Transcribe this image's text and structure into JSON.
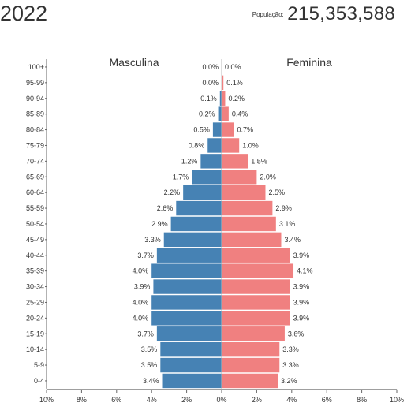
{
  "header": {
    "year": "2022",
    "population_label": "População:",
    "population_value": "215,353,588"
  },
  "colors": {
    "male": "#4682b4",
    "female": "#f08080",
    "text": "#333333",
    "axis": "#666666"
  },
  "chart_data": {
    "type": "bar",
    "orientation": "horizontal-population-pyramid",
    "title": "",
    "series_labels": {
      "male": "Masculina",
      "female": "Feminina"
    },
    "unit": "%",
    "xlim": [
      -10,
      10
    ],
    "x_ticks": [
      "10%",
      "8%",
      "6%",
      "4%",
      "2%",
      "0%",
      "2%",
      "4%",
      "6%",
      "8%",
      "10%"
    ],
    "categories": [
      "100+",
      "95-99",
      "90-94",
      "85-89",
      "80-84",
      "75-79",
      "70-74",
      "65-69",
      "60-64",
      "55-59",
      "50-54",
      "45-49",
      "40-44",
      "35-39",
      "30-34",
      "25-29",
      "20-24",
      "15-19",
      "10-14",
      "5-9",
      "0-4"
    ],
    "series": [
      {
        "name": "Masculina",
        "labels": [
          "0.0%",
          "0.0%",
          "0.1%",
          "0.2%",
          "0.5%",
          "0.8%",
          "1.2%",
          "1.7%",
          "2.2%",
          "2.6%",
          "2.9%",
          "3.3%",
          "3.7%",
          "4.0%",
          "3.9%",
          "4.0%",
          "4.0%",
          "3.7%",
          "3.5%",
          "3.5%",
          "3.4%"
        ],
        "values": [
          0.0,
          0.0,
          0.1,
          0.2,
          0.5,
          0.8,
          1.2,
          1.7,
          2.2,
          2.6,
          2.9,
          3.3,
          3.7,
          4.0,
          3.9,
          4.0,
          4.0,
          3.7,
          3.5,
          3.5,
          3.4
        ]
      },
      {
        "name": "Feminina",
        "labels": [
          "0.0%",
          "0.1%",
          "0.2%",
          "0.4%",
          "0.7%",
          "1.0%",
          "1.5%",
          "2.0%",
          "2.5%",
          "2.9%",
          "3.1%",
          "3.4%",
          "3.9%",
          "4.1%",
          "3.9%",
          "3.9%",
          "3.9%",
          "3.6%",
          "3.3%",
          "3.3%",
          "3.2%"
        ],
        "values": [
          0.0,
          0.1,
          0.2,
          0.4,
          0.7,
          1.0,
          1.5,
          2.0,
          2.5,
          2.9,
          3.1,
          3.4,
          3.9,
          4.1,
          3.9,
          3.9,
          3.9,
          3.6,
          3.3,
          3.3,
          3.2
        ]
      }
    ]
  }
}
